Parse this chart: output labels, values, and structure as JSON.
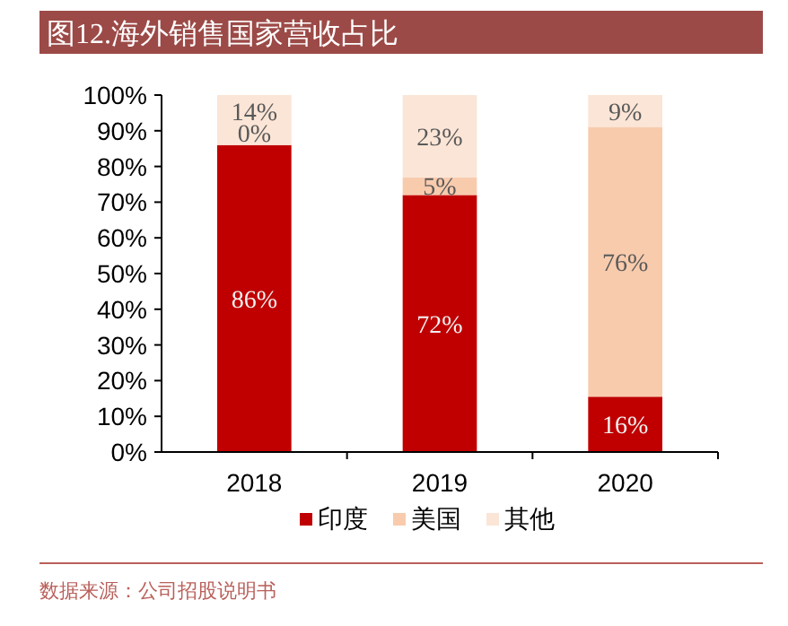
{
  "chart_data": {
    "type": "bar",
    "title": "图12.海外销售国家营收占比",
    "categories": [
      "2018",
      "2019",
      "2020"
    ],
    "stacked": true,
    "series": [
      {
        "name": "印度",
        "color": "#c00000",
        "values": [
          86,
          72,
          15.5
        ],
        "value_labels": [
          "86%",
          "72%",
          "16%"
        ]
      },
      {
        "name": "美国",
        "color": "#f8cbad",
        "values": [
          0,
          5,
          75.6
        ],
        "value_labels": [
          "0%",
          "5%",
          "76%"
        ]
      },
      {
        "name": "其他",
        "color": "#fbe5d6",
        "values": [
          14,
          23,
          8.9
        ],
        "value_labels": [
          "14%",
          "23%",
          "9%"
        ]
      }
    ],
    "ylim": [
      0,
      100
    ],
    "yticks": [
      {
        "value": 0,
        "label": "0%"
      },
      {
        "value": 10,
        "label": "10%"
      },
      {
        "value": 20,
        "label": "20%"
      },
      {
        "value": 30,
        "label": "30%"
      },
      {
        "value": 40,
        "label": "40%"
      },
      {
        "value": 50,
        "label": "50%"
      },
      {
        "value": 60,
        "label": "60%"
      },
      {
        "value": 70,
        "label": "70%"
      },
      {
        "value": 80,
        "label": "80%"
      },
      {
        "value": 90,
        "label": "90%"
      },
      {
        "value": 100,
        "label": "100%"
      }
    ],
    "grid": false,
    "legend": "bottom",
    "annotations": [
      "数据来源：公司招股说明书"
    ]
  }
}
